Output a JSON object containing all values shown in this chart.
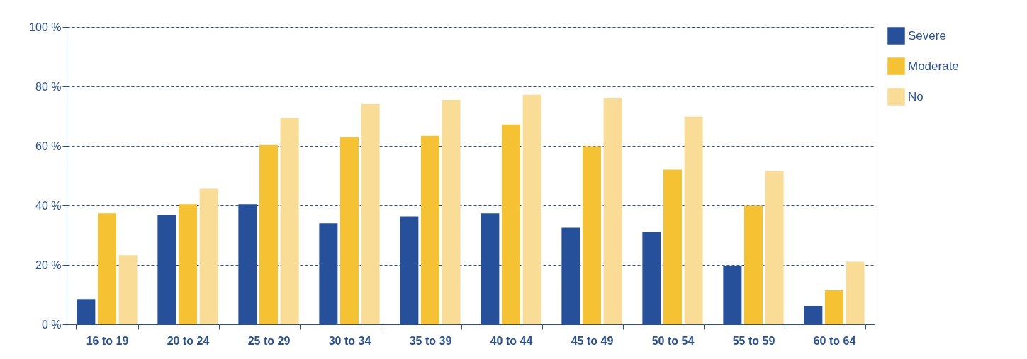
{
  "chart_data": {
    "type": "bar",
    "categories": [
      "16 to 19",
      "20 to 24",
      "25 to 29",
      "30 to 34",
      "35 to 39",
      "40 to 44",
      "45 to 49",
      "50 to 54",
      "55 to 59",
      "60 to 64"
    ],
    "series": [
      {
        "name": "Severe",
        "color": "#27509b",
        "values": [
          8.5,
          36.8,
          40.4,
          34,
          36.3,
          37.3,
          32.5,
          31.1,
          19.7,
          6.2
        ]
      },
      {
        "name": "Moderate",
        "color": "#f4c232",
        "values": [
          37.3,
          40.4,
          60.3,
          62.9,
          63.4,
          67.2,
          59.9,
          52,
          39.9,
          11.4
        ]
      },
      {
        "name": "No",
        "color": "#f9dc96",
        "values": [
          23.3,
          45.6,
          69.4,
          74.1,
          75.5,
          77.2,
          76,
          69.8,
          51.5,
          21.1
        ]
      }
    ],
    "ylim": [
      0,
      100
    ],
    "yticks": [
      {
        "value": 0,
        "label": "0 %"
      },
      {
        "value": 20,
        "label": "20 %"
      },
      {
        "value": 40,
        "label": "40 %"
      },
      {
        "value": 60,
        "label": "60 %"
      },
      {
        "value": 80,
        "label": "80 %"
      },
      {
        "value": 100,
        "label": "100 %"
      }
    ],
    "grid": "y",
    "legend": "right"
  }
}
